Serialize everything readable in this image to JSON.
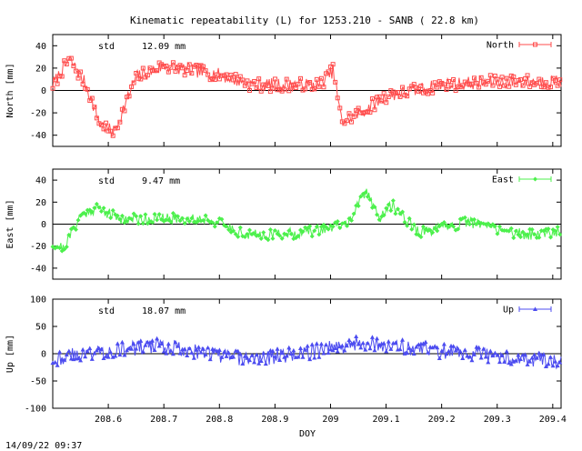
{
  "chart_data": {
    "type": "line",
    "title": "Kinematic repeatability (L) for 1253.210 - SANB  ( 22.8 km)",
    "xlabel": "DOY",
    "x_ticks": [
      "208.6",
      "208.7",
      "208.8",
      "208.9",
      "209",
      "209.1",
      "209.2",
      "209.3",
      "209.4"
    ],
    "xlim": [
      208.5,
      209.415
    ],
    "timestamp": "14/09/22 09:37",
    "panels": [
      {
        "key": "north",
        "ylabel": "North [mm]",
        "legend": "North",
        "color": "#ff4c4c",
        "marker": "square",
        "std_label": "std",
        "std_value": "12.09 mm",
        "ylim": [
          -50,
          50
        ],
        "y_ticks": [
          "40",
          "20",
          "0",
          "-20",
          "-40"
        ],
        "y_tick_values": [
          40,
          20,
          0,
          -20,
          -40
        ],
        "seed": 7,
        "noise": 6,
        "trend_x": [
          208.5,
          208.53,
          208.56,
          208.585,
          208.61,
          208.65,
          208.7,
          208.8,
          208.86,
          208.93,
          208.98,
          209.005,
          209.02,
          209.06,
          209.1,
          209.2,
          209.3,
          209.415
        ],
        "trend_y": [
          5,
          28,
          5,
          -30,
          -38,
          12,
          22,
          14,
          5,
          5,
          5,
          18,
          -28,
          -18,
          -5,
          5,
          8,
          8
        ]
      },
      {
        "key": "east",
        "ylabel": "East [mm]",
        "legend": "East",
        "color": "#4cf04c",
        "marker": "diamond",
        "std_label": "std",
        "std_value": "9.47 mm",
        "ylim": [
          -50,
          50
        ],
        "y_ticks": [
          "40",
          "20",
          "0",
          "-20",
          "-40"
        ],
        "y_tick_values": [
          40,
          20,
          0,
          -20,
          -40
        ],
        "seed": 21,
        "noise": 5,
        "trend_x": [
          208.5,
          208.52,
          208.55,
          208.58,
          208.62,
          208.7,
          208.78,
          208.85,
          208.95,
          209.03,
          209.065,
          209.09,
          209.11,
          209.16,
          209.25,
          209.35,
          209.415
        ],
        "trend_y": [
          -18,
          -22,
          8,
          15,
          5,
          5,
          5,
          -10,
          -8,
          0,
          30,
          5,
          18,
          -8,
          2,
          -10,
          -6
        ]
      },
      {
        "key": "up",
        "ylabel": "Up [mm]",
        "legend": "Up",
        "color": "#4c4cf0",
        "marker": "triangle",
        "std_label": "std",
        "std_value": "18.07 mm",
        "ylim": [
          -100,
          100
        ],
        "y_ticks": [
          "100",
          "50",
          "0",
          "-50",
          "-100"
        ],
        "y_tick_values": [
          100,
          50,
          0,
          -50,
          -100
        ],
        "seed": 43,
        "noise": 14,
        "trend_x": [
          208.5,
          208.55,
          208.6,
          208.7,
          208.78,
          208.85,
          208.95,
          209.0,
          209.05,
          209.1,
          209.2,
          209.3,
          209.415
        ],
        "trend_y": [
          -10,
          0,
          5,
          15,
          0,
          -10,
          0,
          12,
          20,
          15,
          5,
          -5,
          -15
        ]
      }
    ]
  }
}
